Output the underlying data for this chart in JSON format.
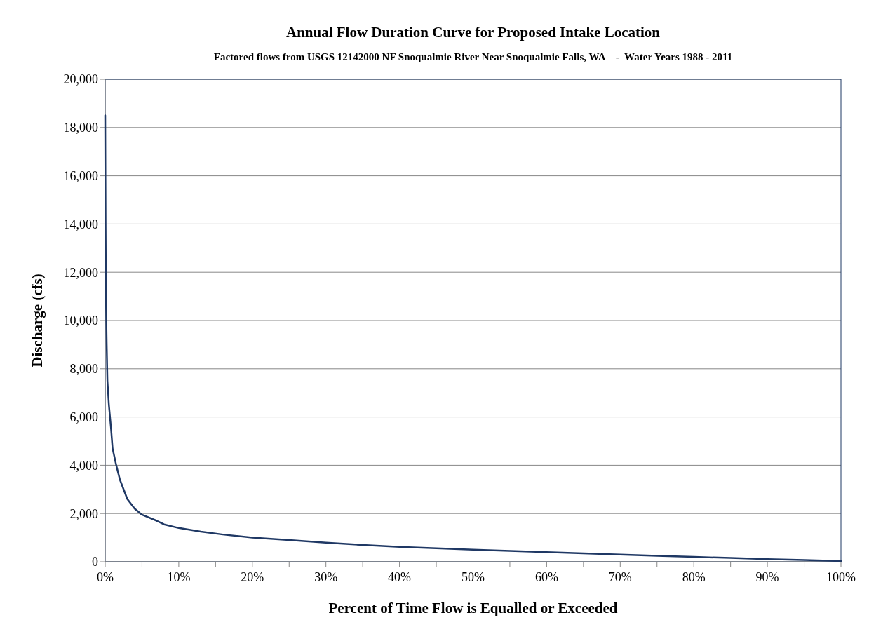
{
  "chart_data": {
    "type": "line",
    "title": "Annual Flow Duration Curve for Proposed Intake Location",
    "subtitle": "Factored flows from USGS 12142000 NF Snoqualmie River Near Snoqualmie Falls, WA    -  Water Years 1988 - 2011",
    "xlabel": "Percent of Time Flow is Equalled or Exceeded",
    "ylabel": "Discharge (cfs)",
    "xlim": [
      0,
      100
    ],
    "xticks": [
      {
        "value": 0,
        "label": "0%"
      },
      {
        "value": 5,
        "label": null
      },
      {
        "value": 10,
        "label": "10%"
      },
      {
        "value": 15,
        "label": null
      },
      {
        "value": 20,
        "label": "20%"
      },
      {
        "value": 25,
        "label": null
      },
      {
        "value": 30,
        "label": "30%"
      },
      {
        "value": 35,
        "label": null
      },
      {
        "value": 40,
        "label": "40%"
      },
      {
        "value": 45,
        "label": null
      },
      {
        "value": 50,
        "label": "50%"
      },
      {
        "value": 55,
        "label": null
      },
      {
        "value": 60,
        "label": "60%"
      },
      {
        "value": 65,
        "label": null
      },
      {
        "value": 70,
        "label": "70%"
      },
      {
        "value": 75,
        "label": null
      },
      {
        "value": 80,
        "label": "80%"
      },
      {
        "value": 85,
        "label": null
      },
      {
        "value": 90,
        "label": "90%"
      },
      {
        "value": 95,
        "label": null
      },
      {
        "value": 100,
        "label": "100%"
      }
    ],
    "ylim": [
      0,
      20000
    ],
    "yticks": [
      {
        "value": 0,
        "label": "0"
      },
      {
        "value": 2000,
        "label": "2,000"
      },
      {
        "value": 4000,
        "label": "4,000"
      },
      {
        "value": 6000,
        "label": "6,000"
      },
      {
        "value": 8000,
        "label": "8,000"
      },
      {
        "value": 10000,
        "label": "10,000"
      },
      {
        "value": 12000,
        "label": "12,000"
      },
      {
        "value": 14000,
        "label": "14,000"
      },
      {
        "value": 16000,
        "label": "16,000"
      },
      {
        "value": 18000,
        "label": "18,000"
      },
      {
        "value": 20000,
        "label": "20,000"
      }
    ],
    "grid": "y",
    "marker": "none",
    "line_style": "solid",
    "series": [
      {
        "color": "#1f3864",
        "x": [
          0,
          0.05,
          0.1,
          0.2,
          0.3,
          0.5,
          0.8,
          1,
          1.5,
          2,
          3,
          4,
          5,
          7,
          8,
          10,
          13,
          16,
          20,
          25,
          30,
          35,
          40,
          45,
          50,
          55,
          60,
          65,
          70,
          75,
          80,
          85,
          90,
          95,
          100
        ],
        "values": [
          18500,
          14000,
          11000,
          9000,
          7500,
          6500,
          5500,
          4700,
          4000,
          3400,
          2600,
          2200,
          1950,
          1700,
          1550,
          1400,
          1250,
          1130,
          1000,
          900,
          790,
          700,
          620,
          560,
          500,
          450,
          400,
          350,
          300,
          250,
          200,
          160,
          110,
          70,
          30
        ]
      }
    ]
  }
}
